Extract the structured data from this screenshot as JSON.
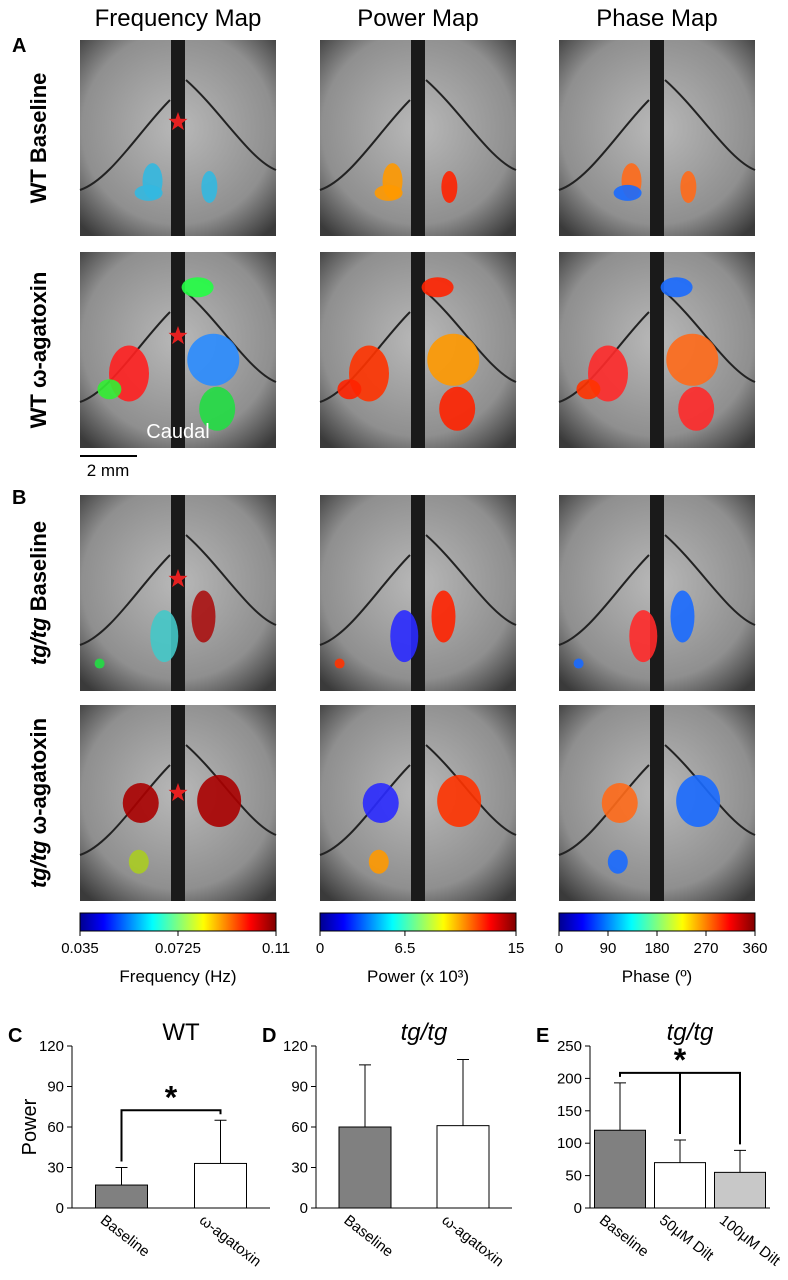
{
  "panel_letters": [
    "A",
    "B",
    "C",
    "D",
    "E"
  ],
  "columns": [
    "Frequency Map",
    "Power Map",
    "Phase Map"
  ],
  "rows": [
    {
      "label": "WT Baseline"
    },
    {
      "label": "WT ω-agatoxin"
    },
    {
      "prefix": "tg/tg",
      "label": "Baseline"
    },
    {
      "prefix": "tg/tg",
      "label": "ω-agatoxin"
    }
  ],
  "annotations": {
    "caudal": "Caudal",
    "scale_bar": "2 mm"
  },
  "colorbars": [
    {
      "label": "Frequency (Hz)",
      "lim": [
        0.035,
        0.11
      ],
      "ticks": [
        0.035,
        0.0725,
        0.11
      ]
    },
    {
      "label": "Power (x 10³)",
      "lim": [
        0,
        15
      ],
      "ticks": [
        0,
        6.5,
        15
      ]
    },
    {
      "label": "Phase (º)",
      "lim": [
        0,
        360
      ],
      "ticks": [
        0,
        90,
        180,
        270,
        360
      ]
    }
  ],
  "chart_data": [
    {
      "type": "bar",
      "title": "WT",
      "title_italic": false,
      "ylabel": "Power",
      "categories": [
        "Baseline",
        "ω-agatoxin"
      ],
      "values": [
        17,
        33
      ],
      "errors": [
        13,
        32
      ],
      "colors": [
        "#808080",
        "#ffffff"
      ],
      "ylim": [
        0,
        120
      ],
      "yticks": [
        0,
        30,
        60,
        90,
        120
      ],
      "significance": "*"
    },
    {
      "type": "bar",
      "title": "tg/tg",
      "title_italic": true,
      "categories": [
        "Baseline",
        "ω-agatoxin"
      ],
      "values": [
        60,
        61
      ],
      "errors": [
        46,
        49
      ],
      "colors": [
        "#808080",
        "#ffffff"
      ],
      "ylim": [
        0,
        120
      ],
      "yticks": [
        0,
        30,
        60,
        90,
        120
      ]
    },
    {
      "type": "bar",
      "title": "tg/tg",
      "title_italic": true,
      "categories": [
        "Baseline",
        "50μM Dilt",
        "100μM Dilt"
      ],
      "values": [
        120,
        70,
        55
      ],
      "errors": [
        73,
        35,
        34
      ],
      "colors": [
        "#808080",
        "#ffffff",
        "#c8c8c8"
      ],
      "ylim": [
        0,
        250
      ],
      "yticks": [
        0,
        50,
        100,
        150,
        200,
        250
      ],
      "significance": "*"
    }
  ]
}
